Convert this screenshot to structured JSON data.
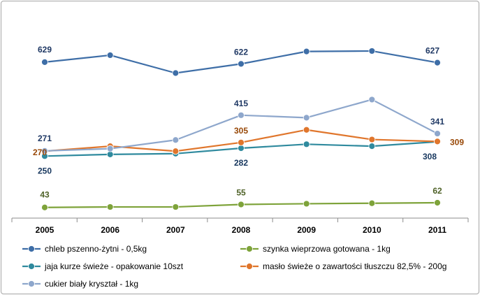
{
  "chart_data": {
    "type": "line",
    "categories": [
      "2005",
      "2006",
      "2007",
      "2008",
      "2009",
      "2010",
      "2011"
    ],
    "series": [
      {
        "name": "chleb pszenno-żytni - 0,5kg",
        "color": "#3e6ea7",
        "values": [
          629,
          657,
          585,
          622,
          672,
          674,
          627
        ],
        "labels": [
          {
            "i": 0,
            "text": "629"
          },
          {
            "i": 3,
            "text": "622"
          },
          {
            "i": 6,
            "text": "627"
          }
        ]
      },
      {
        "name": "szynka wieprzowa gotowana - 1kg",
        "color": "#7ea33a",
        "values": [
          43,
          45,
          45,
          55,
          58,
          60,
          62
        ],
        "labels": [
          {
            "i": 0,
            "text": "43"
          },
          {
            "i": 3,
            "text": "55"
          },
          {
            "i": 6,
            "text": "62"
          }
        ]
      },
      {
        "name": "jaja kurze świeże - opakowanie 10szt",
        "color": "#2f8a9e",
        "values": [
          250,
          257,
          260,
          282,
          298,
          290,
          308
        ],
        "labels": [
          {
            "i": 0,
            "text": "250"
          },
          {
            "i": 3,
            "text": "282"
          },
          {
            "i": 6,
            "text": "308"
          }
        ]
      },
      {
        "name": "masło świeże o zawartości tłuszczu 82,5% - 200g",
        "color": "#e0762c",
        "values": [
          270,
          290,
          270,
          305,
          356,
          317,
          309
        ],
        "labels": [
          {
            "i": 0,
            "text": "270"
          },
          {
            "i": 3,
            "text": "305"
          },
          {
            "i": 6,
            "text": "309"
          }
        ]
      },
      {
        "name": "cukier biały kryształ - 1kg",
        "color": "#8ea7cc",
        "values": [
          271,
          280,
          315,
          415,
          405,
          478,
          341
        ],
        "labels": [
          {
            "i": 0,
            "text": "271"
          },
          {
            "i": 3,
            "text": "415"
          },
          {
            "i": 6,
            "text": "341"
          }
        ]
      }
    ],
    "ylim": [
      0,
      730
    ],
    "grid": false,
    "legend": "bottom"
  }
}
